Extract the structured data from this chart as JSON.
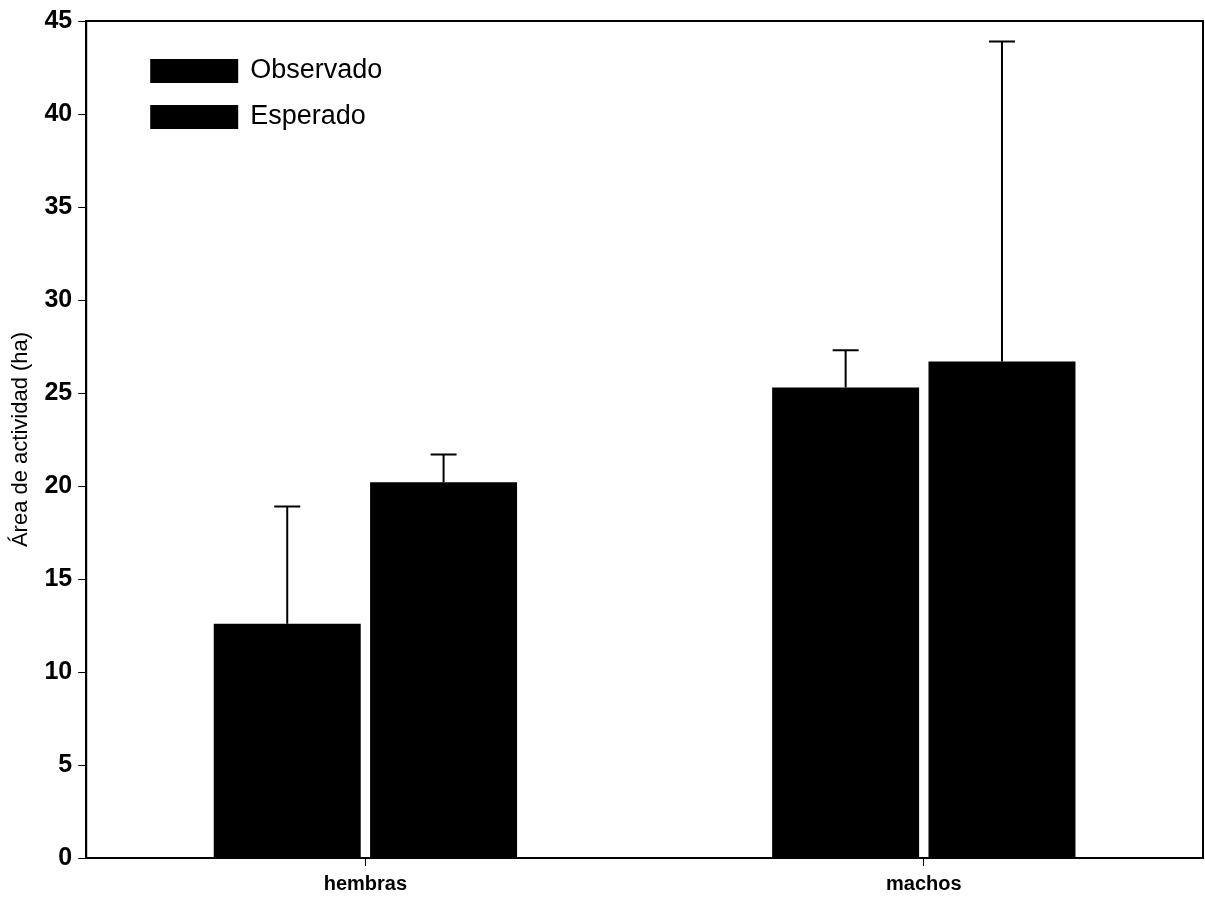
{
  "chart_data": {
    "type": "bar",
    "ylabel": "Área de actividad (ha)",
    "categories": [
      "hembras",
      "machos"
    ],
    "series": [
      {
        "name": "Observado",
        "color": "#000000",
        "values": [
          12.6,
          25.3
        ],
        "errors": [
          [
            12.6,
            18.9
          ],
          [
            25.3,
            27.3
          ]
        ]
      },
      {
        "name": "Esperado",
        "color": "#000000",
        "values": [
          20.2,
          26.7
        ],
        "errors": [
          [
            20.2,
            21.7
          ],
          [
            26.7,
            43.9
          ]
        ]
      }
    ],
    "ylim": [
      0,
      45
    ],
    "yticks": [
      0,
      5,
      10,
      15,
      20,
      25,
      30,
      35,
      40,
      45
    ],
    "grid": false,
    "legend": "top left"
  }
}
